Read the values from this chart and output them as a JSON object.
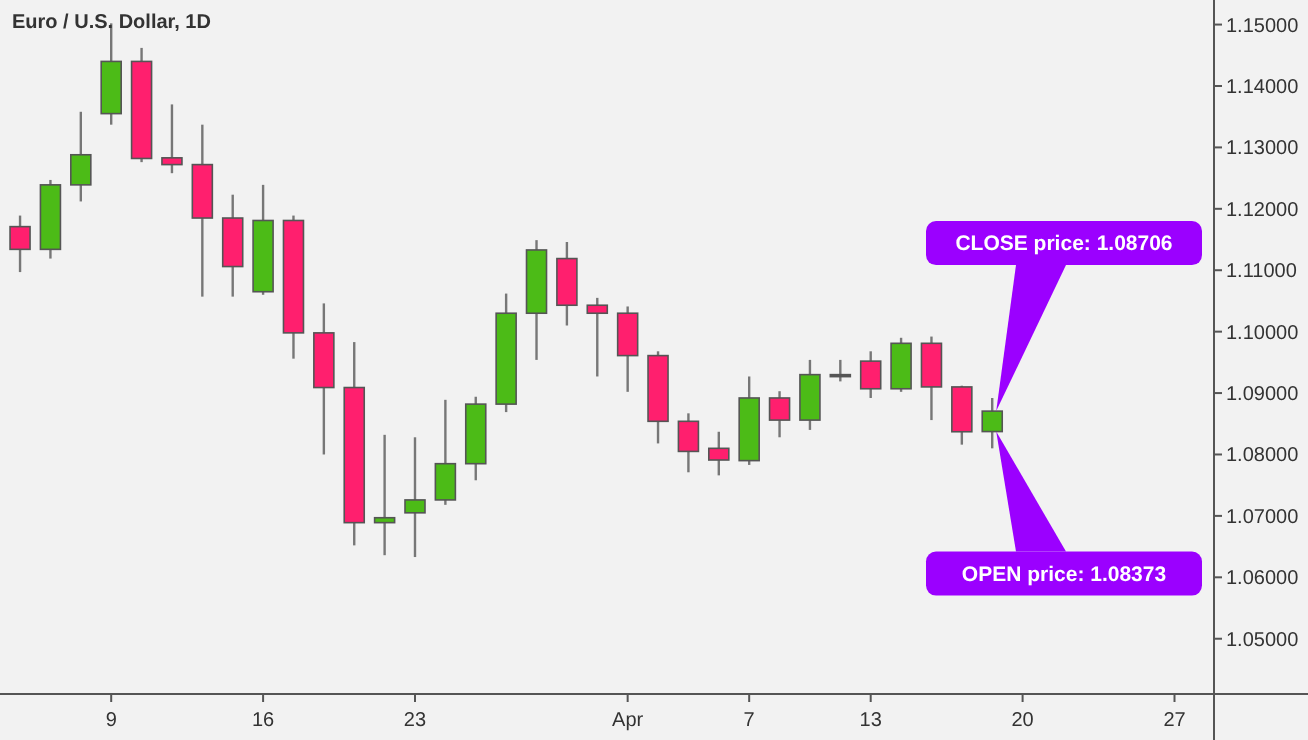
{
  "chart_data": {
    "type": "candlestick",
    "title": "Euro / U.S. Dollar, 1D",
    "categories": [
      null,
      null,
      null,
      "9",
      null,
      null,
      null,
      null,
      "16",
      null,
      null,
      null,
      null,
      "23",
      null,
      null,
      null,
      null,
      null,
      null,
      "Apr",
      null,
      null,
      null,
      "7",
      null,
      null,
      null,
      "13",
      null,
      null,
      null,
      null,
      "20",
      null,
      null,
      null,
      null,
      "27",
      null
    ],
    "ohlc": [
      [
        1.1171,
        1.1189,
        1.1097,
        1.1134
      ],
      [
        1.1134,
        1.1247,
        1.1119,
        1.1239
      ],
      [
        1.1239,
        1.1358,
        1.1212,
        1.1288
      ],
      [
        1.1355,
        1.1502,
        1.1337,
        1.144
      ],
      [
        1.144,
        1.1462,
        1.1276,
        1.1282
      ],
      [
        1.1283,
        1.137,
        1.1258,
        1.1272
      ],
      [
        1.1272,
        1.1337,
        1.1057,
        1.1185
      ],
      [
        1.1185,
        1.1223,
        1.1057,
        1.1106
      ],
      [
        1.1065,
        1.1239,
        1.106,
        1.1181
      ],
      [
        1.1181,
        1.1189,
        1.0956,
        1.0998
      ],
      [
        1.0998,
        1.1046,
        1.08,
        1.0909
      ],
      [
        1.0909,
        1.0983,
        1.0652,
        1.0689
      ],
      [
        1.0689,
        1.0832,
        1.0636,
        1.0697
      ],
      [
        1.0705,
        1.0828,
        1.0633,
        1.0726
      ],
      [
        1.0726,
        1.0889,
        1.0718,
        1.0785
      ],
      [
        1.0785,
        1.0894,
        1.0758,
        1.0882
      ],
      [
        1.0882,
        1.1062,
        1.0869,
        1.103
      ],
      [
        1.103,
        1.1149,
        1.0954,
        1.1133
      ],
      [
        1.1119,
        1.1146,
        1.101,
        1.1043
      ],
      [
        1.1043,
        1.1055,
        1.0927,
        1.103
      ],
      [
        1.103,
        1.1041,
        1.0902,
        1.0961
      ],
      [
        1.0961,
        1.0968,
        1.0818,
        1.0854
      ],
      [
        1.0854,
        1.0867,
        1.0771,
        1.0805
      ],
      [
        1.081,
        1.0837,
        1.0766,
        1.0791
      ],
      [
        1.079,
        1.0927,
        1.0783,
        1.0892
      ],
      [
        1.0892,
        1.0903,
        1.0828,
        1.0856
      ],
      [
        1.0856,
        1.0954,
        1.084,
        1.093
      ],
      [
        1.093,
        1.0954,
        1.0919,
        1.093
      ],
      [
        1.0952,
        1.0968,
        1.0892,
        1.0907
      ],
      [
        1.0907,
        1.099,
        1.0902,
        1.0981
      ],
      [
        1.0981,
        1.0992,
        1.0856,
        1.091
      ],
      [
        1.091,
        1.0912,
        1.0816,
        1.0837
      ],
      [
        1.08373,
        1.0892,
        1.081,
        1.08706
      ],
      null,
      null,
      null,
      null,
      null,
      null,
      null
    ],
    "colors": [
      "#ff1f6e",
      "#4cbb17",
      "#4cbb17",
      "#4cbb17",
      "#ff1f6e",
      "#ff1f6e",
      "#ff1f6e",
      "#ff1f6e",
      "#4cbb17",
      "#ff1f6e",
      "#ff1f6e",
      "#ff1f6e",
      "#4cbb17",
      "#4cbb17",
      "#4cbb17",
      "#4cbb17",
      "#4cbb17",
      "#4cbb17",
      "#ff1f6e",
      "#ff1f6e",
      "#ff1f6e",
      "#ff1f6e",
      "#ff1f6e",
      "#ff1f6e",
      "#4cbb17",
      "#ff1f6e",
      "#4cbb17",
      "#555555",
      "#ff1f6e",
      "#4cbb17",
      "#ff1f6e",
      "#ff1f6e",
      "#4cbb17",
      null,
      null,
      null,
      null,
      null,
      null,
      null
    ],
    "ylim": [
      1.041,
      1.154
    ],
    "yticks": [
      {
        "value": 1.05,
        "label": "1.05000"
      },
      {
        "value": 1.06,
        "label": "1.06000"
      },
      {
        "value": 1.07,
        "label": "1.07000"
      },
      {
        "value": 1.08,
        "label": "1.08000"
      },
      {
        "value": 1.09,
        "label": "1.09000"
      },
      {
        "value": 1.1,
        "label": "1.10000"
      },
      {
        "value": 1.11,
        "label": "1.11000"
      },
      {
        "value": 1.12,
        "label": "1.12000"
      },
      {
        "value": 1.13,
        "label": "1.13000"
      },
      {
        "value": 1.14,
        "label": "1.14000"
      },
      {
        "value": 1.15,
        "label": "1.15000"
      }
    ],
    "grid": false,
    "annotations": [
      "CLOSE price: 1.08706",
      "OPEN price: 1.08373"
    ]
  }
}
